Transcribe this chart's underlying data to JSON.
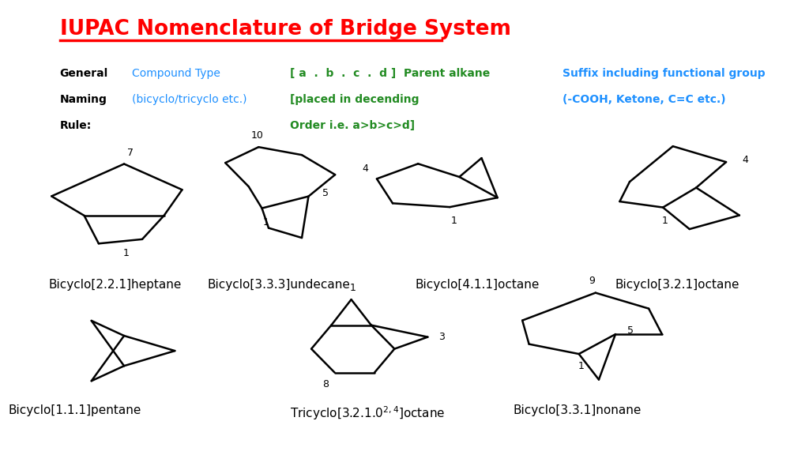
{
  "title": "IUPAC Nomenclature of Bridge System",
  "title_color": "#FF0000",
  "bg_color": "#FFFFFF",
  "header_black_lines": [
    "General",
    "Naming",
    "Rule:"
  ],
  "header_blue1_lines": [
    "Compound Type",
    "(bicyclo/tricyclo etc.)"
  ],
  "header_green_lines": [
    "[ a  .  b  .  c  .  d ]  Parent alkane",
    "[placed in decending",
    "Order i.e. a>b>c>d]"
  ],
  "header_blue2_lines": [
    "Suffix including functional group",
    "(-COOH, Ketone, C=C etc.)"
  ]
}
